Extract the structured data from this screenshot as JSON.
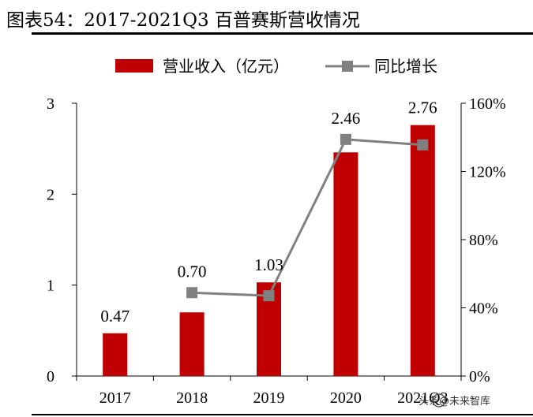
{
  "title": "图表54：2017-2021Q3 百普赛斯营收情况",
  "watermark": "头条@未来智库",
  "chart_data": {
    "type": "bar",
    "categories": [
      "2017",
      "2018",
      "2019",
      "2020",
      "2021Q3"
    ],
    "series": [
      {
        "name": "营业收入（亿元）",
        "type": "bar",
        "axis": "left",
        "color": "#c00000",
        "values": [
          0.47,
          0.7,
          1.03,
          2.46,
          2.76
        ],
        "labels": [
          "0.47",
          "0.70",
          "1.03",
          "2.46",
          "2.76"
        ]
      },
      {
        "name": "同比增长",
        "type": "line",
        "axis": "right",
        "color": "#808080",
        "values": [
          null,
          48.9,
          47.1,
          138.8,
          135.6
        ]
      }
    ],
    "y_left": {
      "min": 0,
      "max": 3,
      "ticks": [
        "0",
        "1",
        "2",
        "3"
      ]
    },
    "y_right": {
      "min": 0,
      "max": 160,
      "ticks": [
        "0%",
        "40%",
        "80%",
        "120%",
        "160%"
      ]
    },
    "legend_position": "top-center",
    "grid": false
  }
}
